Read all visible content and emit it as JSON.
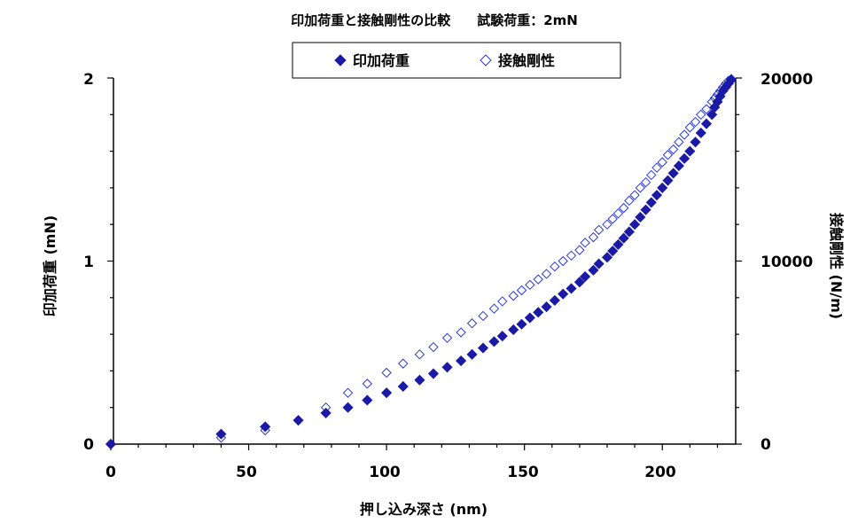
{
  "chart_data": {
    "type": "scatter",
    "title": "印加荷重と接触剛性の比較　　試験荷重：2mN",
    "xlabel": "押し込み深さ (nm)",
    "ylabel": "印加荷重 (mN)",
    "y2label": "接触剛性 (N/m)",
    "xlim": [
      0,
      225
    ],
    "ylim": [
      0,
      2
    ],
    "y2lim": [
      0,
      20000
    ],
    "x_ticks": [
      "0",
      "50",
      "100",
      "150",
      "200"
    ],
    "y_ticks": [
      "0",
      "1",
      "2"
    ],
    "y2_ticks": [
      "0",
      "10000",
      "20000"
    ],
    "legend_position": "top-center",
    "grid": false,
    "series": [
      {
        "name": "印加荷重",
        "axis": "left",
        "marker": "filled-diamond",
        "color": "#1a1aa6",
        "points": [
          [
            0,
            0
          ],
          [
            40,
            0.055
          ],
          [
            56,
            0.095
          ],
          [
            68,
            0.13
          ],
          [
            78,
            0.17
          ],
          [
            86,
            0.2
          ],
          [
            93,
            0.24
          ],
          [
            100,
            0.28
          ],
          [
            106,
            0.315
          ],
          [
            112,
            0.35
          ],
          [
            117,
            0.385
          ],
          [
            122,
            0.42
          ],
          [
            127,
            0.455
          ],
          [
            131,
            0.49
          ],
          [
            135,
            0.525
          ],
          [
            139,
            0.56
          ],
          [
            142,
            0.59
          ],
          [
            146,
            0.625
          ],
          [
            149,
            0.655
          ],
          [
            152,
            0.69
          ],
          [
            155,
            0.72
          ],
          [
            158,
            0.75
          ],
          [
            161,
            0.785
          ],
          [
            164,
            0.82
          ],
          [
            167,
            0.85
          ],
          [
            170,
            0.885
          ],
          [
            172,
            0.915
          ],
          [
            175,
            0.95
          ],
          [
            177,
            0.985
          ],
          [
            180,
            1.02
          ],
          [
            182,
            1.055
          ],
          [
            184,
            1.09
          ],
          [
            186,
            1.125
          ],
          [
            188,
            1.16
          ],
          [
            190,
            1.2
          ],
          [
            192,
            1.24
          ],
          [
            194,
            1.28
          ],
          [
            196,
            1.32
          ],
          [
            198,
            1.36
          ],
          [
            200,
            1.4
          ],
          [
            202,
            1.44
          ],
          [
            204,
            1.48
          ],
          [
            206,
            1.52
          ],
          [
            208,
            1.56
          ],
          [
            210,
            1.6
          ],
          [
            212,
            1.65
          ],
          [
            214,
            1.7
          ],
          [
            216,
            1.75
          ],
          [
            218,
            1.8
          ],
          [
            219,
            1.84
          ],
          [
            220,
            1.87
          ],
          [
            221,
            1.9
          ],
          [
            222,
            1.93
          ],
          [
            223,
            1.95
          ],
          [
            224,
            1.97
          ],
          [
            225,
            1.99
          ]
        ]
      },
      {
        "name": "接触剛性",
        "axis": "right",
        "marker": "open-diamond",
        "color": "#2a3ad8",
        "points": [
          [
            0,
            0
          ],
          [
            40,
            350
          ],
          [
            56,
            750
          ],
          [
            68,
            1300
          ],
          [
            78,
            2000
          ],
          [
            86,
            2800
          ],
          [
            93,
            3300
          ],
          [
            100,
            3900
          ],
          [
            106,
            4400
          ],
          [
            112,
            4900
          ],
          [
            117,
            5300
          ],
          [
            122,
            5800
          ],
          [
            127,
            6100
          ],
          [
            131,
            6600
          ],
          [
            135,
            7000
          ],
          [
            139,
            7400
          ],
          [
            142,
            7800
          ],
          [
            146,
            8100
          ],
          [
            149,
            8400
          ],
          [
            152,
            8700
          ],
          [
            155,
            9000
          ],
          [
            158,
            9300
          ],
          [
            161,
            9700
          ],
          [
            164,
            10000
          ],
          [
            167,
            10300
          ],
          [
            170,
            10600
          ],
          [
            172,
            11000
          ],
          [
            175,
            11300
          ],
          [
            177,
            11700
          ],
          [
            180,
            12000
          ],
          [
            182,
            12300
          ],
          [
            184,
            12600
          ],
          [
            186,
            12900
          ],
          [
            188,
            13300
          ],
          [
            190,
            13600
          ],
          [
            192,
            14000
          ],
          [
            194,
            14300
          ],
          [
            196,
            14700
          ],
          [
            198,
            15100
          ],
          [
            200,
            15400
          ],
          [
            202,
            15800
          ],
          [
            204,
            16100
          ],
          [
            206,
            16500
          ],
          [
            208,
            16900
          ],
          [
            210,
            17300
          ],
          [
            212,
            17600
          ],
          [
            214,
            18000
          ],
          [
            216,
            18300
          ],
          [
            218,
            18700
          ],
          [
            219,
            18900
          ],
          [
            220,
            19100
          ],
          [
            221,
            19300
          ],
          [
            222,
            19500
          ],
          [
            223,
            19700
          ],
          [
            224,
            19850
          ],
          [
            225,
            19950
          ]
        ]
      }
    ]
  }
}
